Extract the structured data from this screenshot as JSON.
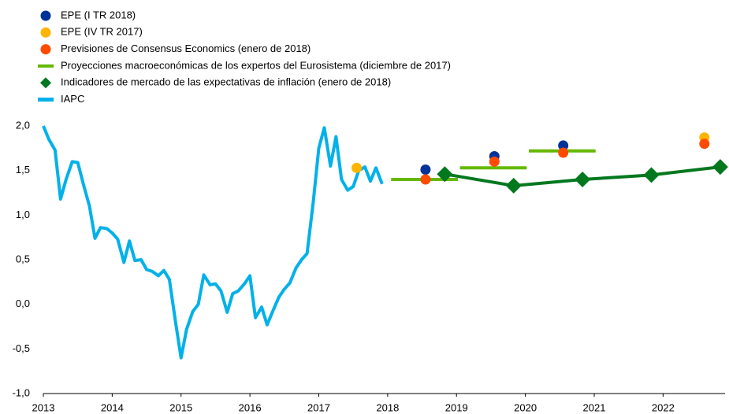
{
  "chart_data": {
    "type": "mixed",
    "xlim": [
      2013,
      2022.9
    ],
    "xticks": [
      2013,
      2014,
      2015,
      2016,
      2017,
      2018,
      2019,
      2020,
      2021,
      2022
    ],
    "ylim": [
      -1,
      2
    ],
    "yticks": [
      {
        "value": -1,
        "label": "-1,0"
      },
      {
        "value": -0.5,
        "label": "-0,5"
      },
      {
        "value": 0,
        "label": "0,0"
      },
      {
        "value": 0.5,
        "label": "0,5"
      },
      {
        "value": 1,
        "label": "1,0"
      },
      {
        "value": 1.5,
        "label": "1,5"
      },
      {
        "value": 2,
        "label": "2,0"
      }
    ],
    "grid": false,
    "series": [
      {
        "name": "EPE (I TR 2018)",
        "type": "scatter",
        "color": "#003299",
        "x": [
          2018.55,
          2019.55,
          2020.55
        ],
        "values": [
          1.51,
          1.66,
          1.78
        ]
      },
      {
        "name": "EPE (IV TR 2017)",
        "type": "scatter",
        "color": "#ffb400",
        "x": [
          2017.55,
          2022.6
        ],
        "values": [
          1.53,
          1.87
        ]
      },
      {
        "name": "Previsiones de Consensus Economics (enero de 2018)",
        "type": "scatter",
        "color": "#ff4b00",
        "x": [
          2018.55,
          2019.55,
          2020.55,
          2022.6
        ],
        "values": [
          1.4,
          1.6,
          1.7,
          1.8
        ]
      },
      {
        "name": "Proyecciones macroeconómicas de los expertos del Eurosistema (diciembre de 2017)",
        "type": "segment",
        "color": "#65b800",
        "x_start": [
          2018.05,
          2019.05,
          2020.05
        ],
        "x_end": [
          2019.02,
          2020.02,
          2021.02
        ],
        "values": [
          1.4,
          1.53,
          1.72
        ]
      },
      {
        "name": "Indicadores de mercado de las expectativas de inflación (enero de 2018)",
        "type": "line-diamond",
        "color": "#00781e",
        "x": [
          2018.83,
          2019.83,
          2020.83,
          2021.83,
          2022.83
        ],
        "values": [
          1.46,
          1.33,
          1.4,
          1.45,
          1.54
        ]
      },
      {
        "name": "IAPC",
        "type": "line",
        "color": "#00b1ea",
        "x": [
          2013.0,
          2013.08,
          2013.17,
          2013.25,
          2013.33,
          2013.42,
          2013.5,
          2013.58,
          2013.67,
          2013.75,
          2013.83,
          2013.92,
          2014.0,
          2014.08,
          2014.17,
          2014.25,
          2014.33,
          2014.42,
          2014.5,
          2014.58,
          2014.67,
          2014.75,
          2014.83,
          2014.92,
          2015.0,
          2015.08,
          2015.17,
          2015.25,
          2015.33,
          2015.42,
          2015.5,
          2015.58,
          2015.67,
          2015.75,
          2015.83,
          2015.92,
          2016.0,
          2016.08,
          2016.17,
          2016.25,
          2016.33,
          2016.42,
          2016.5,
          2016.58,
          2016.67,
          2016.75,
          2016.83,
          2016.92,
          2017.0,
          2017.08,
          2017.17,
          2017.25,
          2017.33,
          2017.42,
          2017.5,
          2017.58,
          2017.67,
          2017.75,
          2017.83,
          2017.92
        ],
        "values": [
          2.0,
          1.85,
          1.73,
          1.18,
          1.4,
          1.6,
          1.59,
          1.35,
          1.1,
          0.74,
          0.86,
          0.85,
          0.8,
          0.73,
          0.47,
          0.71,
          0.49,
          0.5,
          0.39,
          0.37,
          0.32,
          0.38,
          0.28,
          -0.2,
          -0.6,
          -0.28,
          -0.08,
          0.0,
          0.33,
          0.22,
          0.23,
          0.15,
          -0.09,
          0.12,
          0.15,
          0.23,
          0.32,
          -0.15,
          -0.03,
          -0.23,
          -0.08,
          0.08,
          0.17,
          0.24,
          0.41,
          0.5,
          0.57,
          1.15,
          1.75,
          1.98,
          1.55,
          1.88,
          1.4,
          1.28,
          1.32,
          1.5,
          1.54,
          1.38,
          1.53,
          1.35
        ]
      }
    ]
  }
}
